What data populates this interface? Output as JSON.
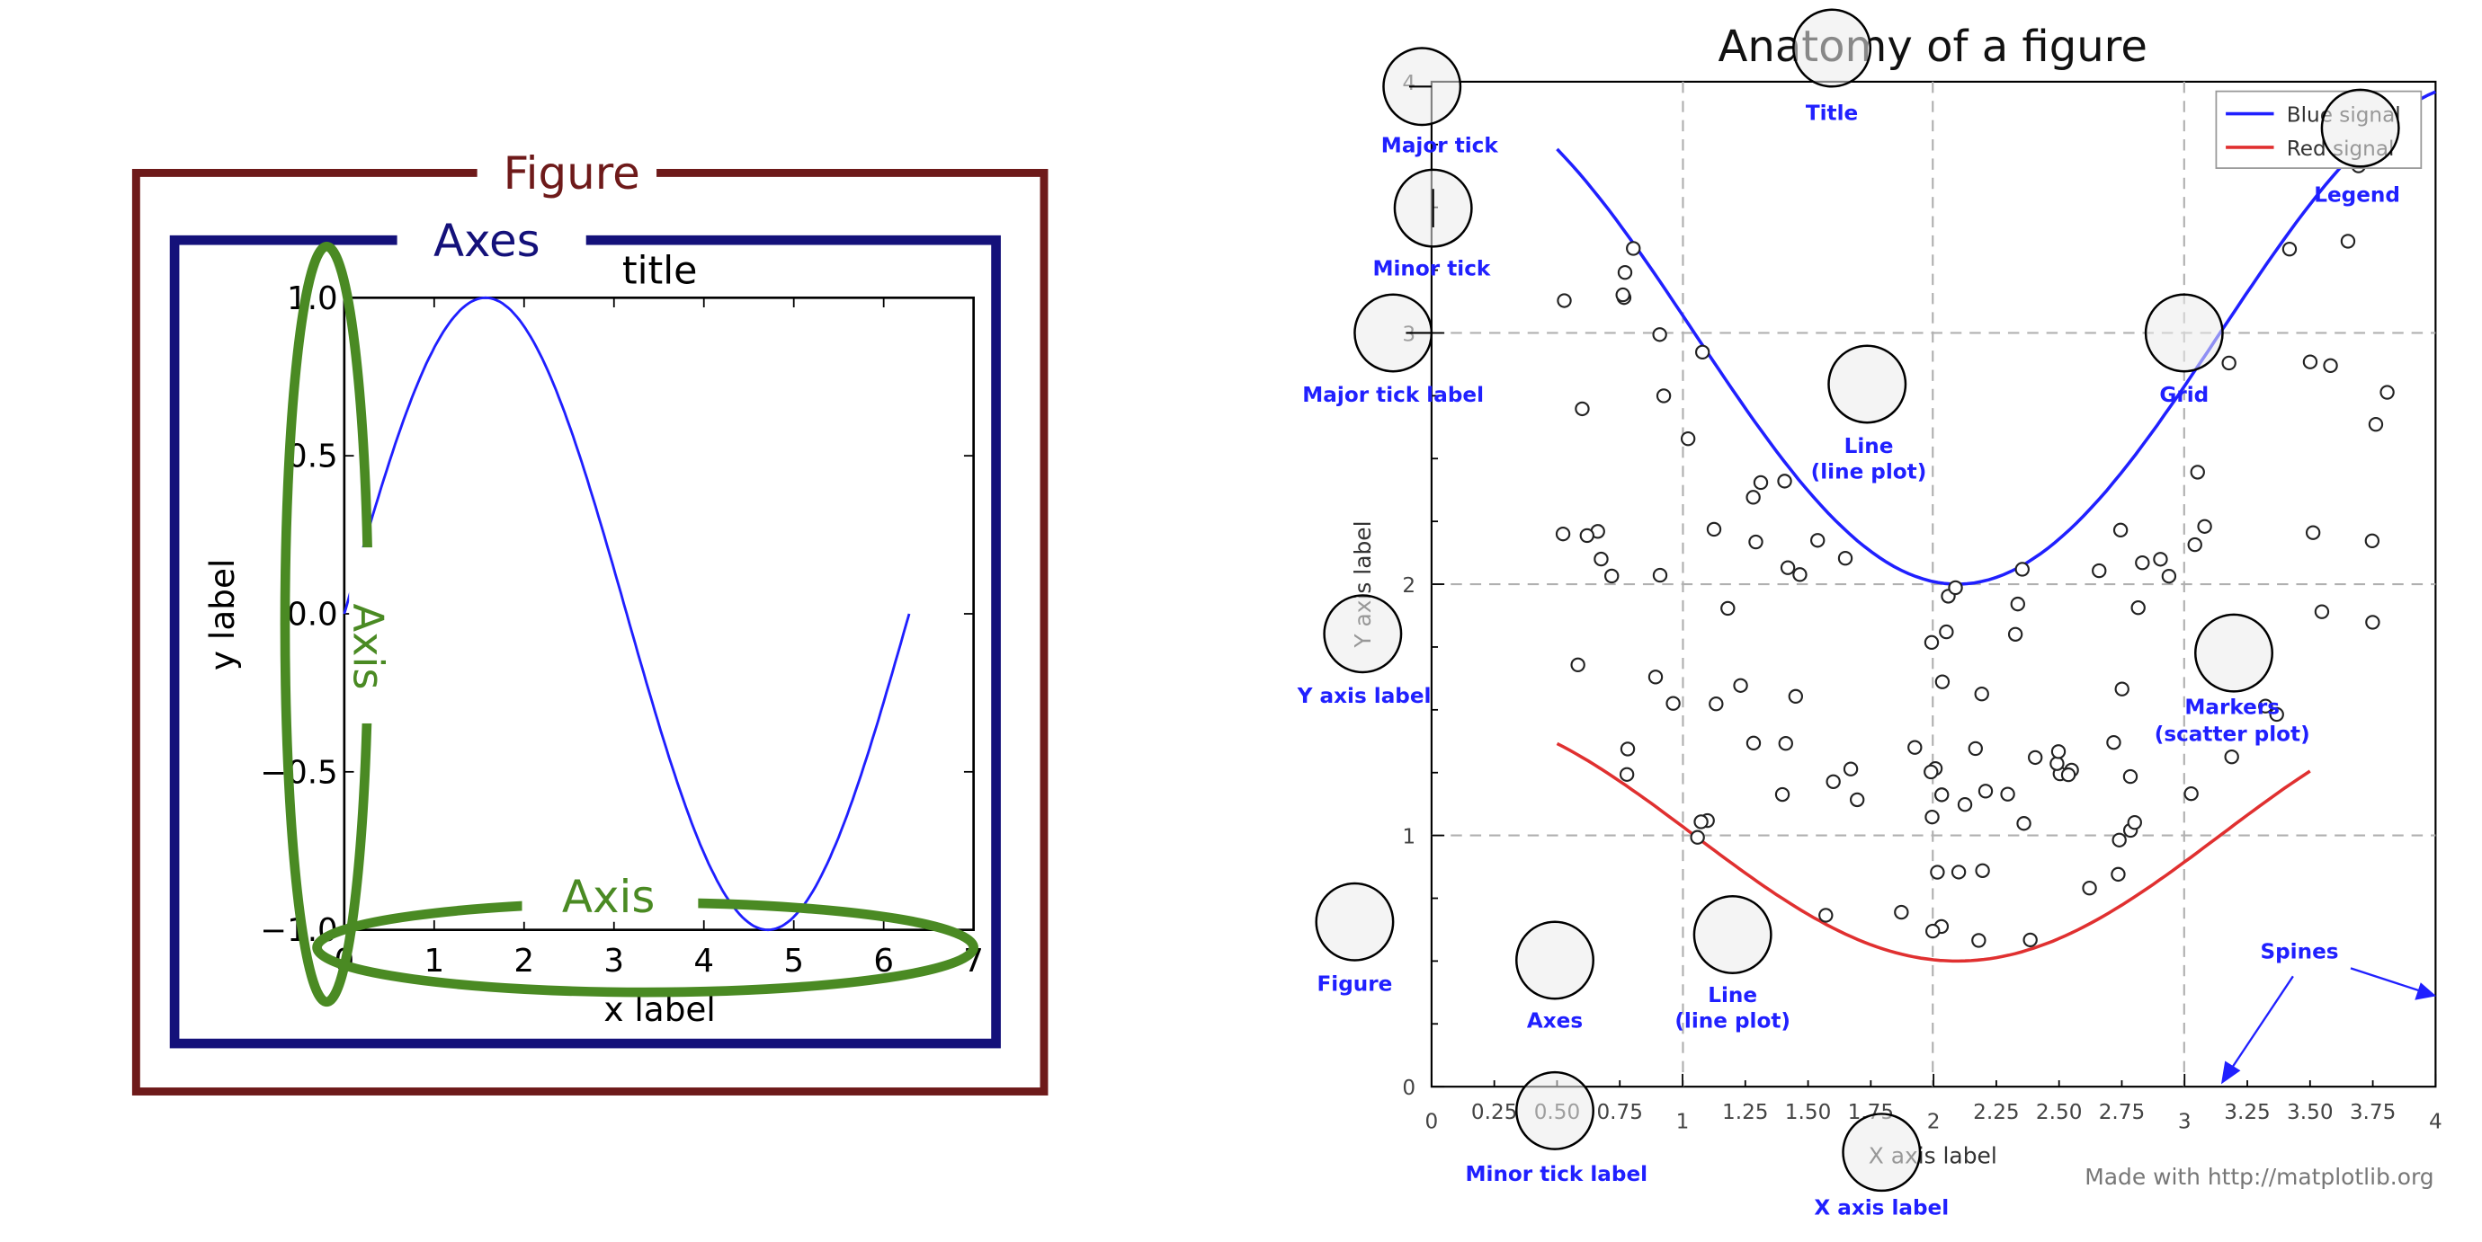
{
  "left_diagram": {
    "figure_label": "Figure",
    "axes_label": "Axes",
    "title": "title",
    "xlabel": "x label",
    "ylabel": "y label",
    "axis_label_y": "Axis",
    "axis_label_x": "Axis",
    "xticks": [
      "0",
      "1",
      "2",
      "3",
      "4",
      "5",
      "6",
      "7"
    ],
    "yticks": [
      "1.0",
      "0.5",
      "0.0",
      "−0.5",
      "−1.0"
    ],
    "colors": {
      "figure": "#6e1a1a",
      "axes": "#14117a",
      "axis": "#4a8a23",
      "line": "#1f1fff"
    }
  },
  "right_diagram": {
    "title": "Anatomy of a figure",
    "xlabel": "X axis label",
    "ylabel": "Y axis label",
    "footer": "Made with http://matplotlib.org",
    "legend": [
      "Blue signal",
      "Red signal"
    ],
    "xticks": [
      "0",
      "0.25",
      "0.50",
      "0.75",
      "1",
      "1.25",
      "1.50",
      "1.75",
      "2",
      "2.25",
      "2.50",
      "2.75",
      "3",
      "3.25",
      "3.50",
      "3.75",
      "4"
    ],
    "yticks": [
      "0",
      "1",
      "2",
      "3",
      "4"
    ],
    "annotations": {
      "title": "Title",
      "major_tick": "Major tick",
      "minor_tick": "Minor tick",
      "major_tick_label": "Major tick label",
      "line1": "Line",
      "line1b": "(line plot)",
      "grid": "Grid",
      "legend": "Legend",
      "y_axis_label": "Y axis label",
      "markers": "Markers",
      "markers_b": "(scatter plot)",
      "figure": "Figure",
      "axes": "Axes",
      "line2": "Line",
      "line2b": "(line plot)",
      "spines": "Spines",
      "minor_tick_label": "Minor tick label",
      "x_axis_label": "X axis label"
    },
    "colors": {
      "blue_signal": "#2020ff",
      "red_signal": "#e03030",
      "annotation": "#2020ff"
    }
  }
}
